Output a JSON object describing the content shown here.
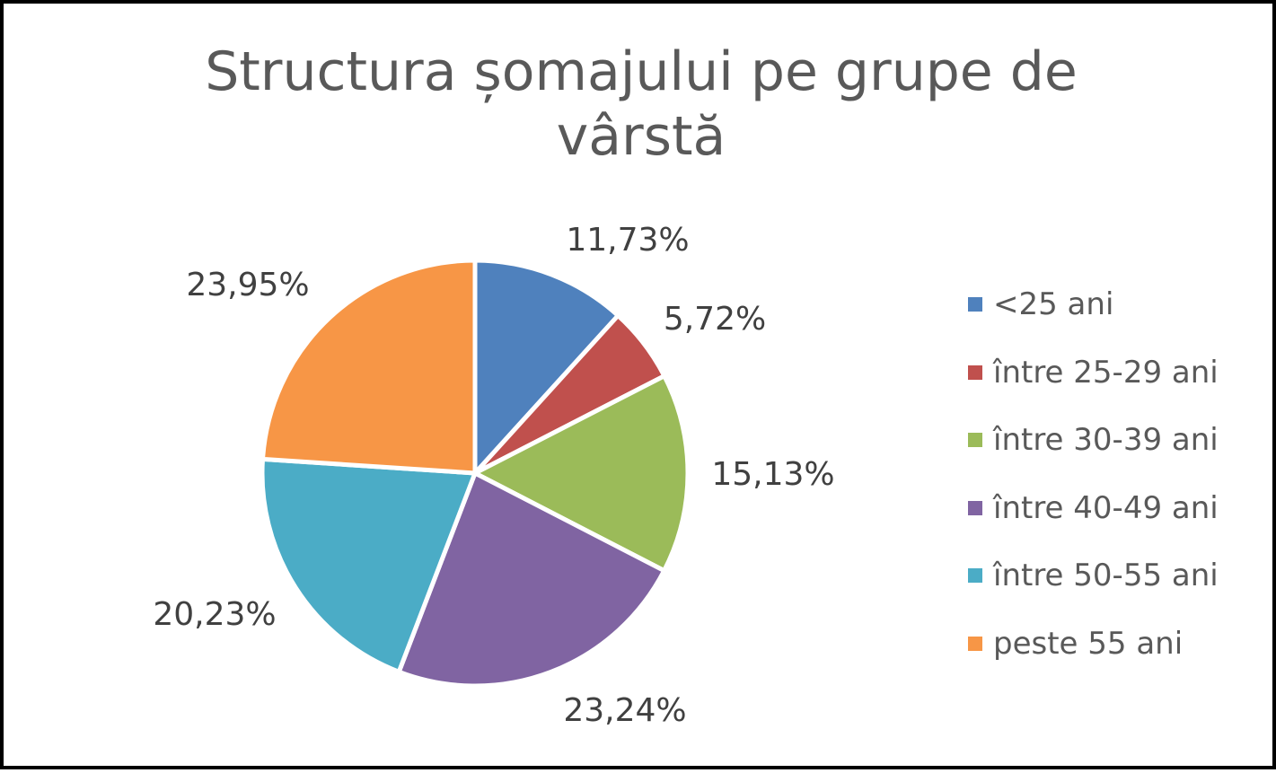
{
  "chart_data": {
    "type": "pie",
    "title": [
      "Structura șomajului pe grupe de",
      "vârstă"
    ],
    "categories": [
      "<25 ani",
      "între 25-29 ani",
      "între 30-39 ani",
      "între 40-49 ani",
      "între 50-55 ani",
      "peste 55 ani"
    ],
    "values": [
      11.73,
      5.72,
      15.13,
      23.24,
      20.23,
      23.95
    ],
    "data_labels": [
      "11,73%",
      "5,72%",
      "15,13%",
      "23,24%",
      "20,23%",
      "23,95%"
    ],
    "colors": [
      "#4F81BD",
      "#C0504D",
      "#9BBB59",
      "#8064A2",
      "#4BACC6",
      "#F79646"
    ],
    "legend_position": "right"
  }
}
